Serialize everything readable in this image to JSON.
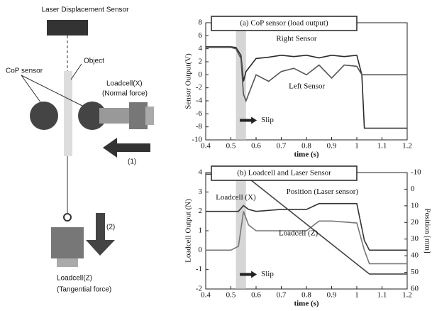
{
  "diagram": {
    "laser": "Laser Displacement Sensor",
    "object": "Object",
    "cop": "CoP sensor",
    "loadcell_x": "Loadcell(X)",
    "normal": "(Normal force)",
    "arrow1": "(1)",
    "arrow2": "(2)",
    "loadcell_z": "Loadcell(Z)",
    "tangential": "(Tangential force)"
  },
  "chart_data": [
    {
      "type": "line",
      "title": "(a) CoP sensor (load output)",
      "xlabel": "time (s)",
      "ylabel": "Sensor Output(V)",
      "xlim": [
        0.4,
        1.2
      ],
      "xticks": [
        0.4,
        0.5,
        0.6,
        0.7,
        0.8,
        0.9,
        1,
        1.1,
        1.2
      ],
      "ylim": [
        -10,
        8
      ],
      "yticks": [
        -10,
        -8,
        -6,
        -4,
        -2,
        0,
        2,
        4,
        6,
        8
      ],
      "shade": [
        0.52,
        0.56
      ],
      "x": [
        0.4,
        0.5,
        0.52,
        0.54,
        0.55,
        0.56,
        0.58,
        0.6,
        0.65,
        0.7,
        0.75,
        0.8,
        0.85,
        0.9,
        0.95,
        1,
        1.02,
        1.03,
        1.1,
        1.2
      ],
      "series": [
        {
          "color": "#2a2a2a",
          "values": [
            4.3,
            4.3,
            4.2,
            3,
            -1,
            0.5,
            1.5,
            2.5,
            2.7,
            3,
            2.8,
            3,
            2.6,
            3,
            2.8,
            3,
            0,
            -8.2,
            -8.2,
            -8.2
          ]
        },
        {
          "color": "#555555",
          "values": [
            4.2,
            4.2,
            4,
            2.5,
            -3,
            -4,
            -2,
            0,
            -1,
            0.5,
            1,
            0,
            1.5,
            -0.5,
            1.5,
            1.3,
            0,
            0,
            0,
            0
          ]
        }
      ],
      "annotations": [
        "Right Sensor",
        "Left Sensor",
        "Slip"
      ]
    },
    {
      "type": "line",
      "title": "(b) Loadcell and Laser Sensor",
      "xlabel": "time (s)",
      "ylabel": "Loadcell Output (N)",
      "y2label": "Position [mm]",
      "xlim": [
        0.4,
        1.2
      ],
      "xticks": [
        0.4,
        0.5,
        0.6,
        0.7,
        0.8,
        0.9,
        1,
        1.1,
        1.2
      ],
      "ylim": [
        -2,
        4
      ],
      "yticks": [
        -2,
        -1,
        0,
        1,
        2,
        3,
        4
      ],
      "y2lim": [
        60,
        -10
      ],
      "y2ticks": [
        -10,
        0,
        10,
        20,
        30,
        40,
        50,
        60
      ],
      "shade": [
        0.52,
        0.56
      ],
      "x": [
        0.4,
        0.5,
        0.53,
        0.55,
        0.57,
        0.6,
        0.7,
        0.8,
        0.85,
        0.9,
        1,
        1.03,
        1.05,
        1.07,
        1.1,
        1.2
      ],
      "series": [
        {
          "color": "#333333",
          "values": [
            2,
            2,
            2,
            2.3,
            2.1,
            2,
            2.1,
            2.1,
            2.4,
            2.4,
            2.4,
            0.5,
            0,
            0,
            0,
            0
          ]
        },
        {
          "color": "#777777",
          "values": [
            0,
            0,
            0.2,
            2,
            1.3,
            1,
            1,
            1,
            1.5,
            1.5,
            1.4,
            0,
            -0.7,
            -0.7,
            -0.7,
            -0.7
          ]
        },
        {
          "color": "#444444",
          "axis": "y2",
          "values": [
            -9,
            -9,
            -9,
            -9,
            -6.6,
            -3,
            9,
            21,
            27,
            33,
            45,
            48.6,
            51,
            51,
            51,
            51
          ]
        }
      ],
      "annotations": [
        "Loadcell (X)",
        "Position (Laser sensor)",
        "Loadcell (Z)",
        "Slip"
      ]
    }
  ]
}
